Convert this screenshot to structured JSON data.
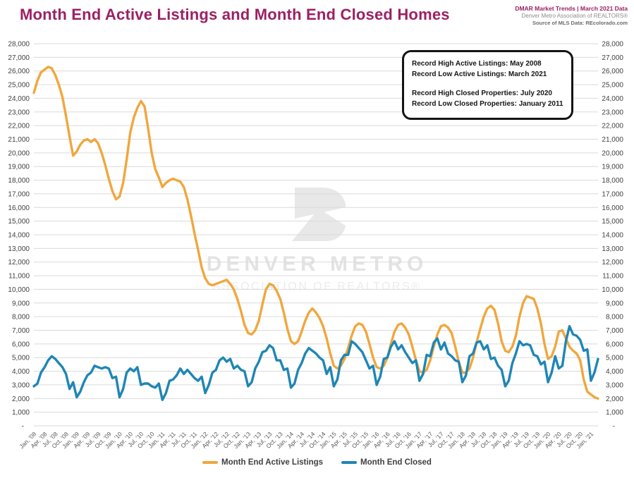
{
  "header": {
    "title": "Month End Active Listings and Month End Closed Homes",
    "meta_line1": "DMAR Market Trends | March 2021 Data",
    "meta_line2": "Denver Metro Association of REALTORS®",
    "meta_line3": "Source of MLS Data: REcolorado.com"
  },
  "annotation": {
    "line1": "Record High Active Listings: May 2008",
    "line2": "Record Low Active Listings: March 2021",
    "line3": "Record High Closed Properties: July 2020",
    "line4": "Record Low Closed Properties: January 2011"
  },
  "watermark": {
    "logo": "dmar-d-mountain-logo",
    "line1": "DENVER METRO",
    "line2": "ASSOCIATION OF REALTORS®"
  },
  "legend": [
    {
      "label": "Month End Active Listings",
      "color": "#F0A73E"
    },
    {
      "label": "Month End Closed",
      "color": "#1F86B4"
    }
  ],
  "colors": {
    "title": "#9C2063",
    "active_line": "#F0A73E",
    "closed_line": "#1F86B4",
    "gridline": "#DADADA",
    "y_label": "#404040",
    "x_label": "#595959",
    "watermark": "#E8E8E8",
    "callout_border": "#141414"
  },
  "chart_data": {
    "type": "line",
    "title": "Month End Active Listings and Month End Closed Homes",
    "x_start": "Jan 2008",
    "x_end": "Mar 2021",
    "x_frequency": "monthly",
    "x_tick_every_months": 3,
    "x_tick_labels": [
      "Jan, '08",
      "Apr, '08",
      "Jul, '08",
      "Oct, '08",
      "Jan, '09",
      "Apr, '09",
      "Jul, '09",
      "Oct, '09",
      "Jan, '10",
      "Apr, '10",
      "Jul, '10",
      "Oct, '10",
      "Jan, '11",
      "Apr, '11",
      "Jul, '11",
      "Oct, '11",
      "Jan, '12",
      "Apr, '12",
      "Jul, '12",
      "Oct, '12",
      "Jan, '13",
      "Apr, '13",
      "Jul, '13",
      "Oct, '13",
      "Jan, '14",
      "Apr, '14",
      "Jul, '14",
      "Oct, '14",
      "Jan, '15",
      "Apr, '15",
      "Jul, '15",
      "Oct, '15",
      "Jan, '16",
      "Apr, '16",
      "Jul, '16",
      "Oct, '16",
      "Jan, '17",
      "Apr, '17",
      "Jul, '17",
      "Oct, '17",
      "Jan, '18",
      "Apr, '18",
      "Jul, '18",
      "Oct, '18",
      "Jan, '19",
      "Apr, '19",
      "Jul, '19",
      "Oct, '19",
      "Jan, '20",
      "Apr, '20",
      "Jul, '20",
      "Oct, '20",
      "Jan, '21"
    ],
    "ylim": [
      0,
      28000
    ],
    "y_tick_step": 1000,
    "y_zero_label": "-",
    "y_axis_sides": "both",
    "grid": "horizontal",
    "legend_position": "bottom-center",
    "series": [
      {
        "name": "Month End Active Listings",
        "color": "#F0A73E",
        "values": [
          24400,
          25300,
          25900,
          26100,
          26300,
          26200,
          25700,
          25000,
          24100,
          22700,
          21200,
          19800,
          20100,
          20600,
          20900,
          21000,
          20800,
          21000,
          20700,
          20000,
          19100,
          18100,
          17200,
          16600,
          16800,
          17800,
          19500,
          21500,
          22600,
          23300,
          23800,
          23400,
          21800,
          20000,
          18800,
          18200,
          17500,
          17800,
          18000,
          18100,
          18000,
          17900,
          17500,
          16600,
          15400,
          14100,
          12900,
          11600,
          10800,
          10400,
          10300,
          10400,
          10500,
          10600,
          10700,
          10400,
          10000,
          9300,
          8400,
          7400,
          6800,
          6700,
          7000,
          7700,
          8900,
          10000,
          10400,
          10300,
          9900,
          9300,
          8300,
          7100,
          6200,
          6000,
          6200,
          6900,
          7700,
          8300,
          8600,
          8300,
          7900,
          7300,
          6400,
          5300,
          4400,
          4200,
          4400,
          4900,
          5700,
          6600,
          7300,
          7500,
          7400,
          6900,
          6000,
          5000,
          4300,
          4200,
          4400,
          5000,
          6000,
          6900,
          7400,
          7500,
          7200,
          6700,
          5800,
          4800,
          4000,
          3900,
          4100,
          4800,
          5800,
          6700,
          7300,
          7400,
          7200,
          6800,
          5800,
          4700,
          3900,
          3900,
          4200,
          5000,
          6100,
          7100,
          8000,
          8600,
          8800,
          8500,
          7500,
          6200,
          5500,
          5400,
          5800,
          6600,
          8000,
          9000,
          9500,
          9400,
          9300,
          8600,
          7500,
          6000,
          4900,
          5100,
          5800,
          6900,
          7000,
          6400,
          5800,
          5500,
          5300,
          4800,
          3400,
          2500,
          2300,
          2100,
          2000
        ]
      },
      {
        "name": "Month End Closed",
        "color": "#1F86B4",
        "values": [
          2900,
          3100,
          3900,
          4300,
          4800,
          5100,
          4900,
          4600,
          4300,
          3800,
          2700,
          3200,
          2100,
          2500,
          3200,
          3700,
          3900,
          4400,
          4300,
          4200,
          4300,
          4200,
          3500,
          3600,
          2100,
          2700,
          3900,
          4200,
          4000,
          4300,
          3000,
          3100,
          3100,
          2900,
          2800,
          3100,
          1900,
          2400,
          3300,
          3400,
          3700,
          4200,
          3800,
          4100,
          3800,
          3500,
          3300,
          3600,
          2400,
          3000,
          3900,
          4100,
          4800,
          5000,
          4700,
          4900,
          4200,
          4400,
          4100,
          4000,
          2900,
          3200,
          4200,
          4700,
          5400,
          5500,
          5900,
          5700,
          4800,
          4800,
          4100,
          4200,
          2800,
          3100,
          4100,
          4600,
          5300,
          5700,
          5500,
          5300,
          5000,
          4800,
          3800,
          4300,
          2900,
          3400,
          4800,
          5200,
          5200,
          6200,
          6000,
          5700,
          5400,
          4800,
          4200,
          4400,
          3000,
          3600,
          4900,
          5000,
          5800,
          6200,
          5600,
          5900,
          5400,
          5000,
          4600,
          4800,
          3300,
          3800,
          5200,
          5100,
          6100,
          6400,
          5600,
          6100,
          5300,
          5100,
          4800,
          4700,
          3200,
          3700,
          5100,
          5300,
          6100,
          6200,
          5600,
          5900,
          4900,
          5000,
          4400,
          4100,
          2900,
          3300,
          4600,
          5300,
          6200,
          5900,
          6000,
          5900,
          5200,
          5100,
          4500,
          4700,
          3200,
          3900,
          5100,
          4200,
          4400,
          6200,
          7300,
          6700,
          6600,
          6300,
          5500,
          5600,
          3300,
          3900,
          4900
        ]
      }
    ]
  }
}
